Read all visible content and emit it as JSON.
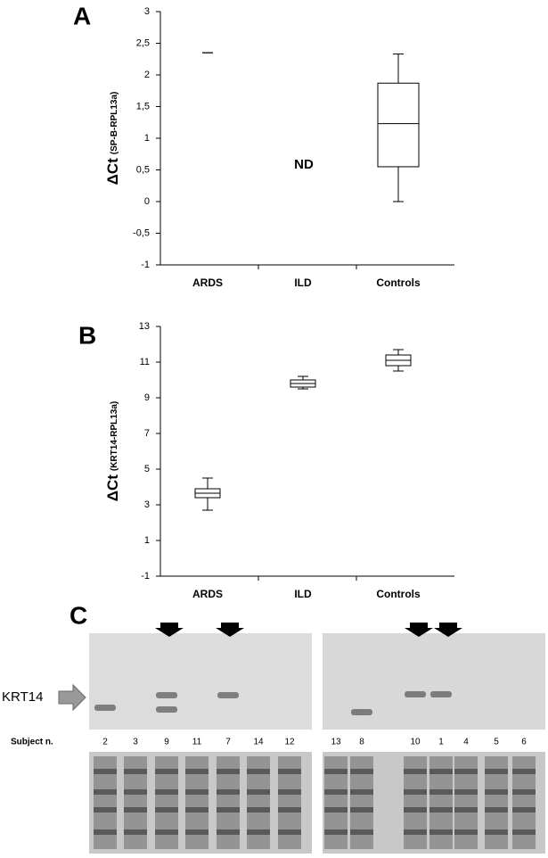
{
  "chart_data": [
    {
      "type": "box",
      "panel": "A",
      "y_label": "ΔCt",
      "y_label_sub": "(SP-B-RPL13a)",
      "categories": [
        "ARDS",
        "ILD",
        "Controls"
      ],
      "stats": [
        {
          "value": 2.35
        },
        null,
        {
          "min": 0,
          "q1": 0.55,
          "median": 1.23,
          "q3": 1.87,
          "max": 2.33
        }
      ],
      "annotation": "ND",
      "ylim": [
        -1,
        3
      ],
      "yticks": [
        -1,
        {
          "value": -0.5,
          "label": "-0,5"
        },
        0,
        {
          "value": 0.5,
          "label": "0,5"
        },
        1,
        {
          "value": 1.5,
          "label": "1,5"
        },
        2,
        {
          "value": 2.5,
          "label": "2,5"
        },
        3
      ]
    },
    {
      "type": "box",
      "panel": "B",
      "y_label": "ΔCt",
      "y_label_sub": "(KRT14-RPL13a)",
      "categories": [
        "ARDS",
        "ILD",
        "Controls"
      ],
      "stats": [
        {
          "min": 2.7,
          "q1": 3.4,
          "median": 3.65,
          "q3": 3.9,
          "max": 4.5
        },
        {
          "min": 9.5,
          "q1": 9.6,
          "median": 9.8,
          "q3": 10.0,
          "max": 10.2
        },
        {
          "min": 10.5,
          "q1": 10.8,
          "median": 11.1,
          "q3": 11.4,
          "max": 11.7
        }
      ],
      "ylim": [
        -1,
        13
      ],
      "yticks": [
        -1,
        1,
        3,
        5,
        7,
        9,
        11,
        13
      ]
    }
  ],
  "blot": {
    "panel": "C",
    "protein": "KRT14",
    "subject_label": "Subject n.",
    "left_lanes": [
      2,
      3,
      9,
      11,
      7,
      14,
      12
    ],
    "right_lanes": [
      13,
      8,
      10,
      1,
      4,
      5,
      6
    ]
  }
}
